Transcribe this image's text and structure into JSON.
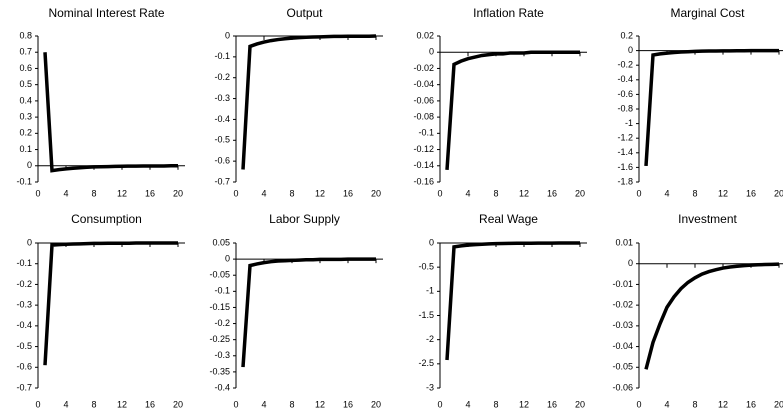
{
  "chart_data": [
    {
      "type": "line",
      "title": "Nominal Interest Rate",
      "color": "#000000",
      "x": [
        1,
        2,
        3,
        4,
        5,
        6,
        7,
        8,
        9,
        10,
        11,
        12,
        13,
        14,
        15,
        16,
        17,
        18,
        19,
        20
      ],
      "values": [
        0.7,
        -0.03,
        -0.024,
        -0.019,
        -0.015,
        -0.012,
        -0.009,
        -0.007,
        -0.006,
        -0.005,
        -0.004,
        -0.003,
        -0.002,
        -0.002,
        -0.001,
        -0.001,
        -0.001,
        -0.001,
        0,
        0
      ],
      "xlim": [
        0,
        21
      ],
      "xticks": [
        0,
        4,
        8,
        12,
        16,
        20
      ],
      "ylim": [
        -0.1,
        0.8
      ],
      "yticks": [
        0.8,
        0.7,
        0.6,
        0.5,
        0.4,
        0.3,
        0.2,
        0.1,
        0,
        -0.1
      ]
    },
    {
      "type": "line",
      "title": "Output",
      "color": "#000000",
      "x": [
        1,
        2,
        3,
        4,
        5,
        6,
        7,
        8,
        9,
        10,
        11,
        12,
        13,
        14,
        15,
        16,
        17,
        18,
        19,
        20
      ],
      "values": [
        -0.64,
        -0.05,
        -0.038,
        -0.029,
        -0.022,
        -0.017,
        -0.013,
        -0.01,
        -0.008,
        -0.006,
        -0.005,
        -0.004,
        -0.003,
        -0.002,
        -0.002,
        -0.001,
        -0.001,
        -0.001,
        -0.001,
        0
      ],
      "xlim": [
        0,
        21
      ],
      "xticks": [
        0,
        4,
        8,
        12,
        16,
        20
      ],
      "ylim": [
        -0.7,
        0
      ],
      "yticks": [
        0,
        -0.1,
        -0.2,
        -0.3,
        -0.4,
        -0.5,
        -0.6,
        -0.7
      ]
    },
    {
      "type": "line",
      "title": "Inflation Rate",
      "color": "#000000",
      "x": [
        1,
        2,
        3,
        4,
        5,
        6,
        7,
        8,
        9,
        10,
        11,
        12,
        13,
        14,
        15,
        16,
        17,
        18,
        19,
        20
      ],
      "values": [
        -0.145,
        -0.015,
        -0.011,
        -0.008,
        -0.006,
        -0.004,
        -0.003,
        -0.002,
        -0.002,
        -0.001,
        -0.001,
        -0.001,
        0,
        0,
        0,
        0,
        0,
        0,
        0,
        0
      ],
      "xlim": [
        0,
        21
      ],
      "xticks": [
        0,
        4,
        8,
        12,
        16,
        20
      ],
      "ylim": [
        -0.16,
        0.02
      ],
      "yticks": [
        0.02,
        0,
        -0.02,
        -0.04,
        -0.06,
        -0.08,
        -0.1,
        -0.12,
        -0.14,
        -0.16
      ]
    },
    {
      "type": "line",
      "title": "Marginal Cost",
      "color": "#000000",
      "x": [
        1,
        2,
        3,
        4,
        5,
        6,
        7,
        8,
        9,
        10,
        11,
        12,
        13,
        14,
        15,
        16,
        17,
        18,
        19,
        20
      ],
      "values": [
        -1.58,
        -0.06,
        -0.045,
        -0.034,
        -0.026,
        -0.02,
        -0.015,
        -0.011,
        -0.008,
        -0.006,
        -0.005,
        -0.004,
        -0.003,
        -0.002,
        -0.002,
        -0.001,
        -0.001,
        -0.001,
        0,
        0
      ],
      "xlim": [
        0,
        21
      ],
      "xticks": [
        0,
        4,
        8,
        12,
        16,
        20
      ],
      "ylim": [
        -1.8,
        0.2
      ],
      "yticks": [
        0.2,
        0,
        -0.2,
        -0.4,
        -0.6,
        -0.8,
        -1,
        -1.2,
        -1.4,
        -1.6,
        -1.8
      ]
    },
    {
      "type": "line",
      "title": "Consumption",
      "color": "#000000",
      "x": [
        1,
        2,
        3,
        4,
        5,
        6,
        7,
        8,
        9,
        10,
        11,
        12,
        13,
        14,
        15,
        16,
        17,
        18,
        19,
        20
      ],
      "values": [
        -0.59,
        -0.01,
        -0.008,
        -0.006,
        -0.005,
        -0.004,
        -0.003,
        -0.002,
        -0.002,
        -0.001,
        -0.001,
        -0.001,
        -0.001,
        0,
        0,
        0,
        0,
        0,
        0,
        0
      ],
      "xlim": [
        0,
        21
      ],
      "xticks": [
        0,
        4,
        8,
        12,
        16,
        20
      ],
      "ylim": [
        -0.7,
        0
      ],
      "yticks": [
        0,
        -0.1,
        -0.2,
        -0.3,
        -0.4,
        -0.5,
        -0.6,
        -0.7
      ]
    },
    {
      "type": "line",
      "title": "Labor Supply",
      "color": "#000000",
      "x": [
        1,
        2,
        3,
        4,
        5,
        6,
        7,
        8,
        9,
        10,
        11,
        12,
        13,
        14,
        15,
        16,
        17,
        18,
        19,
        20
      ],
      "values": [
        -0.335,
        -0.02,
        -0.015,
        -0.011,
        -0.008,
        -0.006,
        -0.005,
        -0.004,
        -0.003,
        -0.002,
        -0.002,
        -0.001,
        -0.001,
        -0.001,
        -0.001,
        0,
        0,
        0,
        0,
        0
      ],
      "xlim": [
        0,
        21
      ],
      "xticks": [
        0,
        4,
        8,
        12,
        16,
        20
      ],
      "ylim": [
        -0.4,
        0.05
      ],
      "yticks": [
        0.05,
        0,
        -0.05,
        -0.1,
        -0.15,
        -0.2,
        -0.25,
        -0.3,
        -0.35,
        -0.4
      ]
    },
    {
      "type": "line",
      "title": "Real Wage",
      "color": "#000000",
      "x": [
        1,
        2,
        3,
        4,
        5,
        6,
        7,
        8,
        9,
        10,
        11,
        12,
        13,
        14,
        15,
        16,
        17,
        18,
        19,
        20
      ],
      "values": [
        -2.42,
        -0.08,
        -0.06,
        -0.045,
        -0.034,
        -0.025,
        -0.019,
        -0.014,
        -0.011,
        -0.008,
        -0.006,
        -0.005,
        -0.004,
        -0.003,
        -0.002,
        -0.002,
        -0.001,
        -0.001,
        -0.001,
        0
      ],
      "xlim": [
        0,
        21
      ],
      "xticks": [
        0,
        4,
        8,
        12,
        16,
        20
      ],
      "ylim": [
        -3,
        0
      ],
      "yticks": [
        0,
        -0.5,
        -1,
        -1.5,
        -2,
        -2.5,
        -3
      ]
    },
    {
      "type": "line",
      "title": "Investment",
      "color": "#000000",
      "x": [
        1,
        2,
        3,
        4,
        5,
        6,
        7,
        8,
        9,
        10,
        11,
        12,
        13,
        14,
        15,
        16,
        17,
        18,
        19,
        20
      ],
      "values": [
        -0.051,
        -0.038,
        -0.029,
        -0.021,
        -0.016,
        -0.012,
        -0.009,
        -0.0068,
        -0.005,
        -0.0038,
        -0.0029,
        -0.0021,
        -0.0016,
        -0.0012,
        -0.0009,
        -0.0007,
        -0.0005,
        -0.0004,
        -0.0003,
        -0.0002
      ],
      "xlim": [
        0,
        21
      ],
      "xticks": [
        0,
        4,
        8,
        12,
        16,
        20
      ],
      "ylim": [
        -0.06,
        0.01
      ],
      "yticks": [
        0.01,
        0,
        -0.01,
        -0.02,
        -0.03,
        -0.04,
        -0.05,
        -0.06
      ]
    }
  ]
}
